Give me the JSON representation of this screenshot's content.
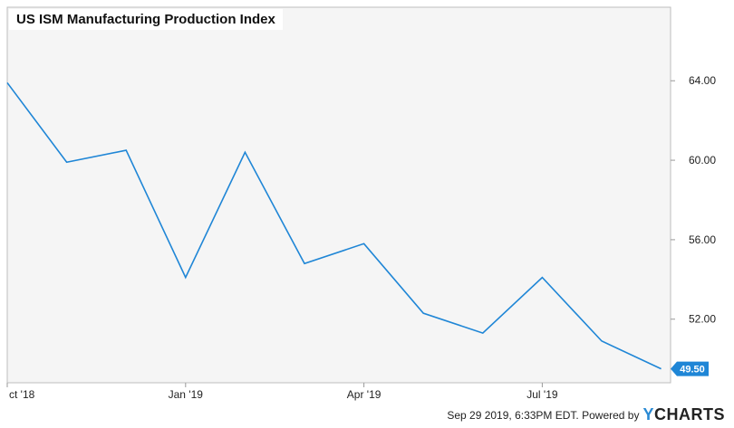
{
  "chart_data": {
    "type": "line",
    "title": "US ISM Manufacturing Production Index",
    "x": [
      "2018-10",
      "2018-11",
      "2018-12",
      "2019-01",
      "2019-02",
      "2019-03",
      "2019-04",
      "2019-05",
      "2019-06",
      "2019-07",
      "2019-08",
      "2019-09"
    ],
    "x_tick_labels": [
      {
        "x": "2018-10",
        "label": "ct '18"
      },
      {
        "x": "2019-01",
        "label": "Jan '19"
      },
      {
        "x": "2019-04",
        "label": "Apr '19"
      },
      {
        "x": "2019-07",
        "label": "Jul '19"
      }
    ],
    "y_ticks": [
      "64.00",
      "60.00",
      "56.00",
      "52.00"
    ],
    "y_tick_values": [
      64,
      60,
      56,
      52
    ],
    "ylim": [
      48.8,
      67.7
    ],
    "series": [
      {
        "values": [
          63.9,
          59.9,
          60.5,
          54.1,
          60.4,
          54.8,
          55.8,
          52.3,
          51.3,
          54.1,
          50.9,
          49.5
        ],
        "color": "#1f86d6"
      }
    ],
    "last_value_label": "49.50",
    "grid": false,
    "colors": {
      "line": "#1f86d6",
      "plot_bg": "#f5f5f5",
      "label_bg": "#1f86d6"
    }
  },
  "footer": {
    "timestamp": "Sep 29 2019, 6:33PM EDT. Powered by",
    "brand_y": "Y",
    "brand_rest": "CHARTS"
  }
}
